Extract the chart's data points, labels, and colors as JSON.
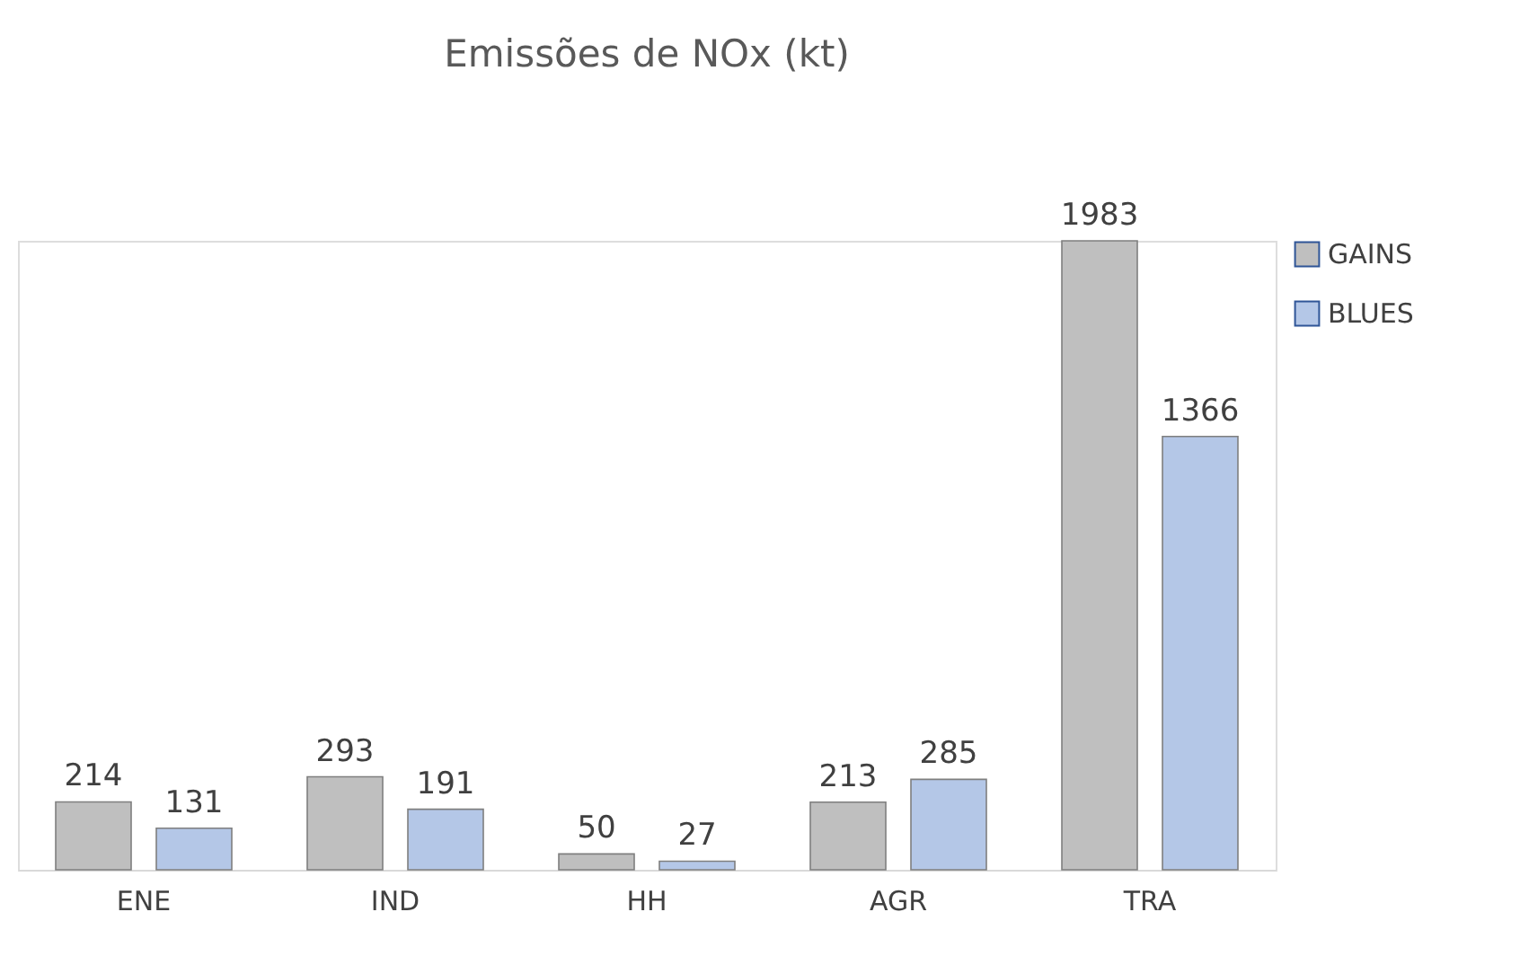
{
  "chart_data": {
    "type": "bar",
    "title": "Emissões de NOx (kt)",
    "categories": [
      "ENE",
      "IND",
      "HH",
      "AGR",
      "TRA"
    ],
    "series": [
      {
        "name": "GAINS",
        "color": "#bfbfbf",
        "values": [
          214,
          293,
          50,
          213,
          1983
        ]
      },
      {
        "name": "BLUES",
        "color": "#b4c7e7",
        "values": [
          131,
          191,
          27,
          285,
          1366
        ]
      }
    ],
    "data_labels": true,
    "legend": "right",
    "grid": false
  }
}
